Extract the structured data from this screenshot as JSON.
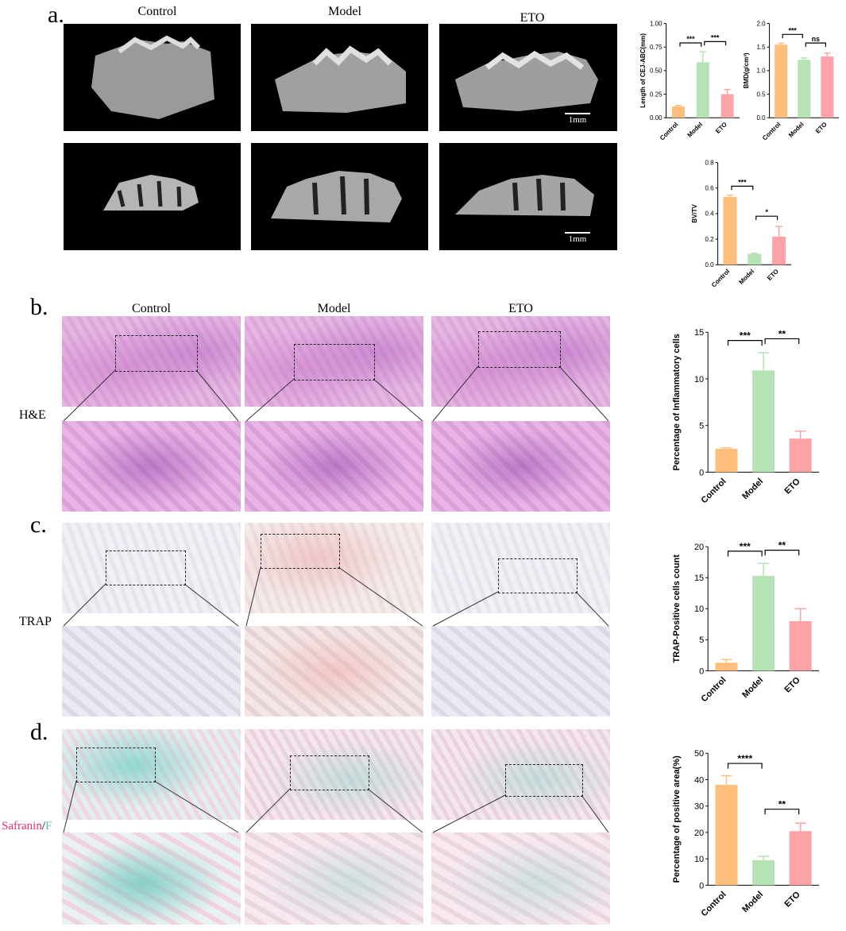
{
  "panels": {
    "a": "a.",
    "b": "b.",
    "c": "c.",
    "d": "d."
  },
  "groups": [
    "Control",
    "Model",
    "ETO"
  ],
  "row_labels": {
    "he": "H&E",
    "trap": "TRAP",
    "saf_red": "Safranin",
    "saf_sep": "/",
    "saf_blue": "F"
  },
  "scale_bar": "1mm",
  "colors": {
    "control": "#FDBF7B",
    "model": "#B5E3B3",
    "eto": "#FBA3A6"
  },
  "charts": [
    {
      "id": "cej",
      "chart_data": {
        "type": "bar",
        "categories": [
          "Control",
          "Model",
          "ETO"
        ],
        "values": [
          0.12,
          0.59,
          0.25
        ],
        "errors": [
          0.01,
          0.11,
          0.05
        ],
        "ylabel": "Length of CEJ-ABC(mm)",
        "ylim": [
          0,
          1.0
        ],
        "yticks": [
          "0.00",
          "0.25",
          "0.50",
          "0.75",
          "1.00"
        ],
        "significance": [
          {
            "from": 0,
            "to": 1,
            "label": "***"
          },
          {
            "from": 1,
            "to": 2,
            "label": "***"
          }
        ]
      }
    },
    {
      "id": "bmd",
      "chart_data": {
        "type": "bar",
        "categories": [
          "Control",
          "Model",
          "ETO"
        ],
        "values": [
          1.55,
          1.23,
          1.3
        ],
        "errors": [
          0.03,
          0.04,
          0.07
        ],
        "ylabel": "BMD(g/cm³)",
        "ylim": [
          0,
          2.0
        ],
        "yticks": [
          "0.0",
          "0.5",
          "1.0",
          "1.5",
          "2.0"
        ],
        "significance": [
          {
            "from": 0,
            "to": 1,
            "label": "***"
          },
          {
            "from": 1,
            "to": 2,
            "label": "ns"
          }
        ]
      }
    },
    {
      "id": "bvtv",
      "chart_data": {
        "type": "bar",
        "categories": [
          "Control",
          "Model",
          "ETO"
        ],
        "values": [
          0.53,
          0.085,
          0.22
        ],
        "errors": [
          0.015,
          0.005,
          0.08
        ],
        "ylabel": "BV/TV",
        "ylim": [
          0,
          0.8
        ],
        "yticks": [
          "0.0",
          "0.2",
          "0.4",
          "0.6",
          "0.8"
        ],
        "significance": [
          {
            "from": 0,
            "to": 1,
            "label": "***"
          },
          {
            "from": 1,
            "to": 2,
            "label": "*"
          }
        ]
      }
    },
    {
      "id": "inflam",
      "chart_data": {
        "type": "bar",
        "categories": [
          "Control",
          "Model",
          "ETO"
        ],
        "values": [
          2.5,
          10.9,
          3.6
        ],
        "errors": [
          0.1,
          1.9,
          0.8
        ],
        "ylabel": "Percentage of Inflammatory cells",
        "ylim": [
          0,
          15
        ],
        "yticks": [
          "0",
          "5",
          "10",
          "15"
        ],
        "significance": [
          {
            "from": 0,
            "to": 1,
            "label": "***"
          },
          {
            "from": 1,
            "to": 2,
            "label": "**"
          }
        ]
      }
    },
    {
      "id": "trap",
      "chart_data": {
        "type": "bar",
        "categories": [
          "Control",
          "Model",
          "ETO"
        ],
        "values": [
          1.3,
          15.3,
          8.0
        ],
        "errors": [
          0.5,
          2.0,
          2.0
        ],
        "ylabel": "TRAP-Positive cells count",
        "ylim": [
          0,
          20
        ],
        "yticks": [
          "0",
          "5",
          "10",
          "15",
          "20"
        ],
        "significance": [
          {
            "from": 0,
            "to": 1,
            "label": "***"
          },
          {
            "from": 1,
            "to": 2,
            "label": "**"
          }
        ]
      }
    },
    {
      "id": "saf",
      "chart_data": {
        "type": "bar",
        "categories": [
          "Control",
          "Model",
          "ETO"
        ],
        "values": [
          38,
          9.5,
          20.5
        ],
        "errors": [
          3.5,
          1.5,
          3.0
        ],
        "ylabel": "Percentage of positive area(%)",
        "ylim": [
          0,
          50
        ],
        "yticks": [
          "0",
          "10",
          "20",
          "30",
          "40",
          "50"
        ],
        "significance": [
          {
            "from": 0,
            "to": 1,
            "label": "****"
          },
          {
            "from": 1,
            "to": 2,
            "label": "**"
          }
        ]
      }
    }
  ]
}
